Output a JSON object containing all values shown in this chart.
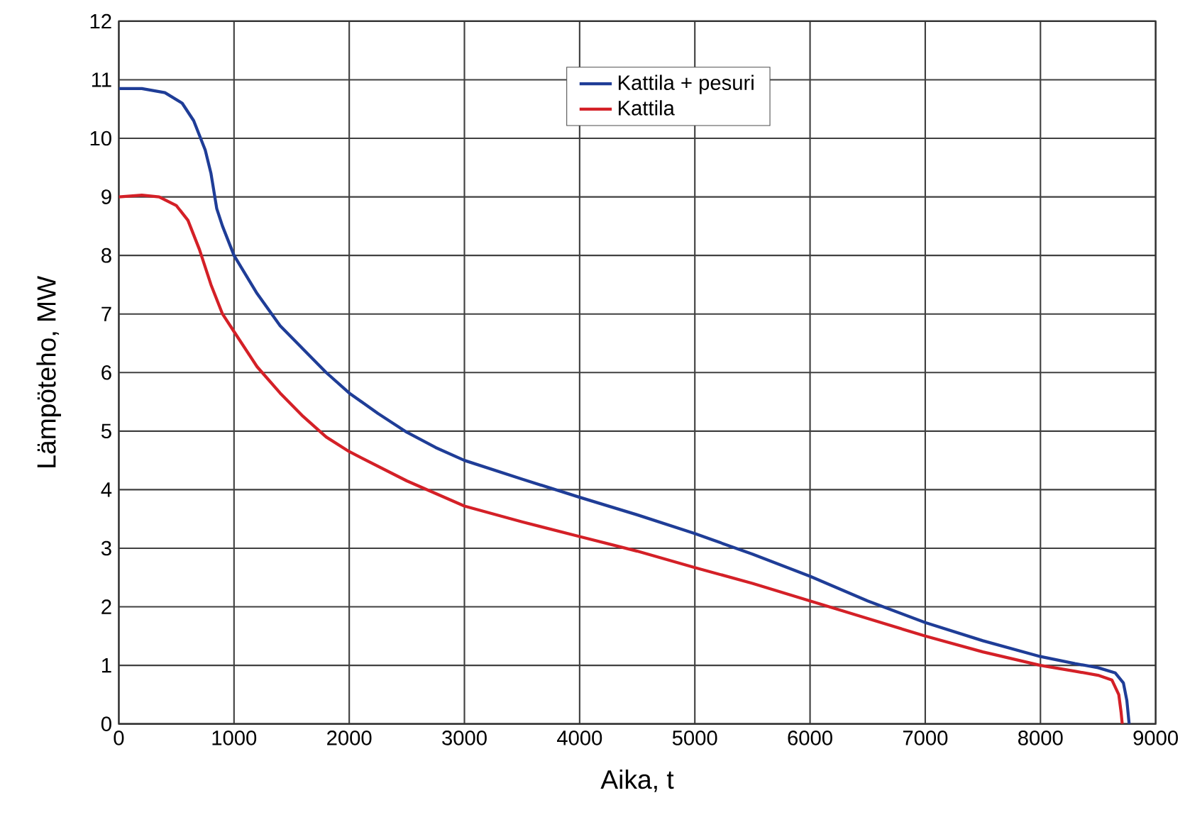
{
  "chart_data": {
    "type": "line",
    "xlabel": "Aika, t",
    "ylabel": "Lämpöteho, MW",
    "xlim": [
      0,
      9000
    ],
    "ylim": [
      0,
      12
    ],
    "xticks": [
      0,
      1000,
      2000,
      3000,
      4000,
      5000,
      6000,
      7000,
      8000,
      9000
    ],
    "yticks": [
      0,
      1,
      2,
      3,
      4,
      5,
      6,
      7,
      8,
      9,
      10,
      11,
      12
    ],
    "grid": true,
    "legend": "top",
    "marker": "none",
    "line_style": "solid",
    "series": [
      {
        "name": "Kattila + pesuri",
        "color": "#1f3d97",
        "x": [
          0,
          200,
          400,
          550,
          650,
          750,
          800,
          850,
          900,
          1000,
          1200,
          1400,
          1600,
          1800,
          2000,
          2250,
          2500,
          2750,
          3000,
          3500,
          4000,
          4500,
          5000,
          5500,
          6000,
          6500,
          7000,
          7500,
          8000,
          8300,
          8500,
          8650,
          8720,
          8750,
          8770
        ],
        "values": [
          10.85,
          10.85,
          10.78,
          10.6,
          10.3,
          9.8,
          9.4,
          8.8,
          8.5,
          8.0,
          7.35,
          6.8,
          6.4,
          6.0,
          5.65,
          5.3,
          4.98,
          4.72,
          4.5,
          4.18,
          3.87,
          3.57,
          3.25,
          2.9,
          2.52,
          2.1,
          1.73,
          1.42,
          1.15,
          1.03,
          0.96,
          0.87,
          0.7,
          0.4,
          0
        ]
      },
      {
        "name": "Kattila",
        "color": "#d42027",
        "x": [
          0,
          200,
          350,
          500,
          600,
          700,
          800,
          900,
          1000,
          1200,
          1400,
          1600,
          1800,
          2000,
          2500,
          3000,
          3500,
          4000,
          4500,
          5000,
          5500,
          6000,
          6500,
          7000,
          7500,
          8000,
          8300,
          8500,
          8620,
          8680,
          8700,
          8710
        ],
        "values": [
          9.0,
          9.03,
          9.0,
          8.85,
          8.6,
          8.1,
          7.5,
          7.0,
          6.7,
          6.1,
          5.65,
          5.25,
          4.9,
          4.65,
          4.15,
          3.72,
          3.45,
          3.2,
          2.95,
          2.67,
          2.4,
          2.1,
          1.8,
          1.5,
          1.23,
          1.0,
          0.9,
          0.83,
          0.75,
          0.5,
          0.2,
          0
        ]
      }
    ]
  }
}
